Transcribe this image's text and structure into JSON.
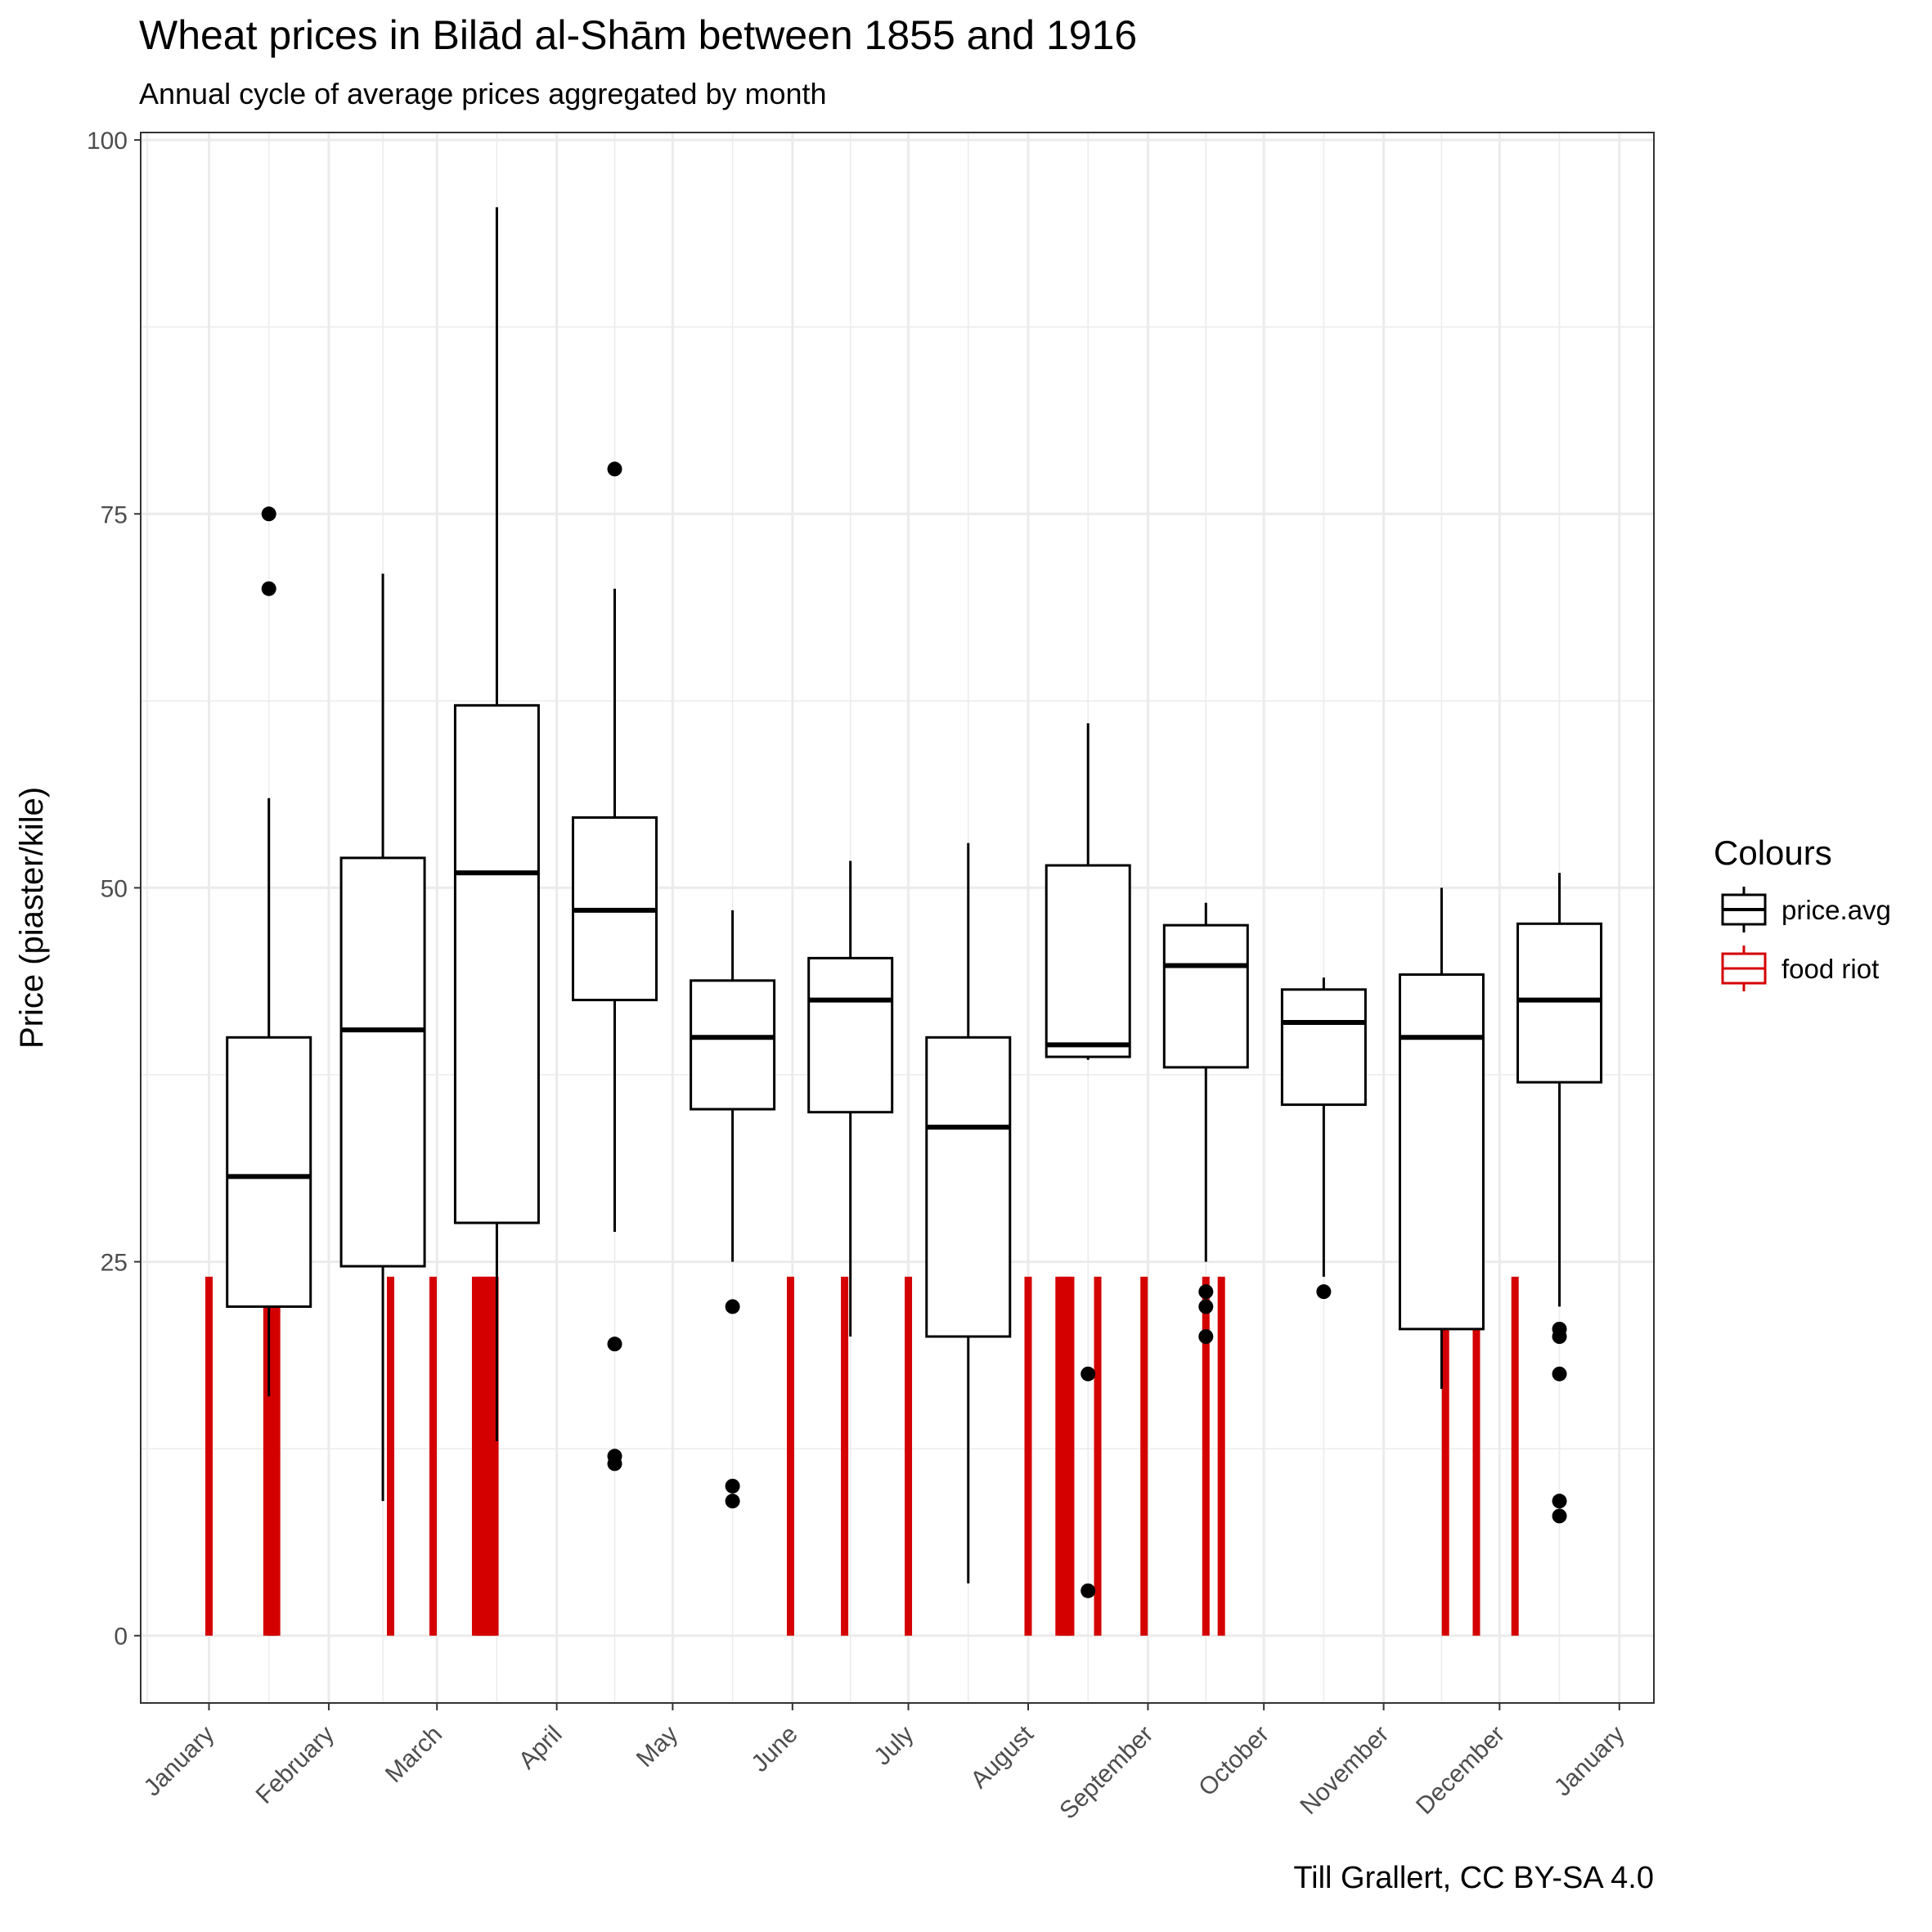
{
  "chart_data": {
    "type": "boxplot",
    "title": "Wheat prices in Bilād al-Shām between 1855 and 1916",
    "subtitle": "Annual cycle of average prices aggregated by month",
    "caption": "Till Grallert, CC BY-SA 4.0",
    "xlabel": "",
    "ylabel": "Price (piaster/kile)",
    "ylim": [
      -4.5,
      100.5
    ],
    "yticks": [
      0,
      25,
      50,
      75,
      100
    ],
    "x_ticks": [
      {
        "label": "January",
        "day": 0
      },
      {
        "label": "February",
        "day": 31
      },
      {
        "label": "March",
        "day": 59
      },
      {
        "label": "April",
        "day": 90
      },
      {
        "label": "May",
        "day": 120
      },
      {
        "label": "June",
        "day": 151
      },
      {
        "label": "July",
        "day": 181
      },
      {
        "label": "August",
        "day": 212
      },
      {
        "label": "September",
        "day": 243
      },
      {
        "label": "October",
        "day": 273
      },
      {
        "label": "November",
        "day": 304
      },
      {
        "label": "December",
        "day": 334
      },
      {
        "label": "January",
        "day": 365
      }
    ],
    "grid": true,
    "legend": {
      "title": "Colours",
      "placement": "right",
      "items": [
        {
          "label": "price.avg",
          "color": "#000000"
        },
        {
          "label": "food riot",
          "color": "#d40000"
        }
      ]
    },
    "boxes": [
      {
        "day": 15.5,
        "whisker_low": 16,
        "q1": 22,
        "median": 30.7,
        "q3": 40,
        "whisker_high": 56,
        "outliers": [
          70,
          75
        ]
      },
      {
        "day": 45,
        "whisker_low": 9,
        "q1": 24.7,
        "median": 40.5,
        "q3": 52,
        "whisker_high": 71,
        "outliers": []
      },
      {
        "day": 74.5,
        "whisker_low": 13,
        "q1": 27.6,
        "median": 51,
        "q3": 62.2,
        "whisker_high": 95.5,
        "outliers": []
      },
      {
        "day": 105,
        "whisker_low": 27,
        "q1": 42.5,
        "median": 48.5,
        "q3": 54.7,
        "whisker_high": 70,
        "outliers": [
          78,
          19.5,
          12,
          11.5
        ]
      },
      {
        "day": 135.5,
        "whisker_low": 25,
        "q1": 35.2,
        "median": 40,
        "q3": 43.8,
        "whisker_high": 48.5,
        "outliers": [
          22,
          10,
          9
        ]
      },
      {
        "day": 166,
        "whisker_low": 20,
        "q1": 35,
        "median": 42.5,
        "q3": 45.3,
        "whisker_high": 51.8,
        "outliers": []
      },
      {
        "day": 196.5,
        "whisker_low": 3.5,
        "q1": 20,
        "median": 34,
        "q3": 40,
        "whisker_high": 53,
        "outliers": []
      },
      {
        "day": 227.5,
        "whisker_low": 38.5,
        "q1": 38.7,
        "median": 39.5,
        "q3": 51.5,
        "whisker_high": 61,
        "outliers": [
          17.5,
          3
        ]
      },
      {
        "day": 258,
        "whisker_low": 25,
        "q1": 38,
        "median": 44.8,
        "q3": 47.5,
        "whisker_high": 49,
        "outliers": [
          23,
          22,
          20
        ]
      },
      {
        "day": 288.5,
        "whisker_low": 24,
        "q1": 35.5,
        "median": 41,
        "q3": 43.2,
        "whisker_high": 44,
        "outliers": [
          23
        ]
      },
      {
        "day": 319,
        "whisker_low": 16.5,
        "q1": 20.5,
        "median": 40,
        "q3": 44.2,
        "whisker_high": 50,
        "outliers": []
      },
      {
        "day": 349.5,
        "whisker_low": 22,
        "q1": 37,
        "median": 42.5,
        "q3": 47.6,
        "whisker_high": 51,
        "outliers": [
          20.5,
          20,
          17.5,
          9,
          8
        ]
      }
    ],
    "food_riots": {
      "height": 24,
      "days": [
        0,
        15,
        16,
        16.8,
        17.5,
        47,
        58,
        69,
        70,
        71,
        72,
        73,
        74,
        150.5,
        164.5,
        181,
        212,
        220,
        221,
        222,
        223,
        230,
        242,
        258,
        262,
        320,
        328,
        338
      ]
    }
  }
}
